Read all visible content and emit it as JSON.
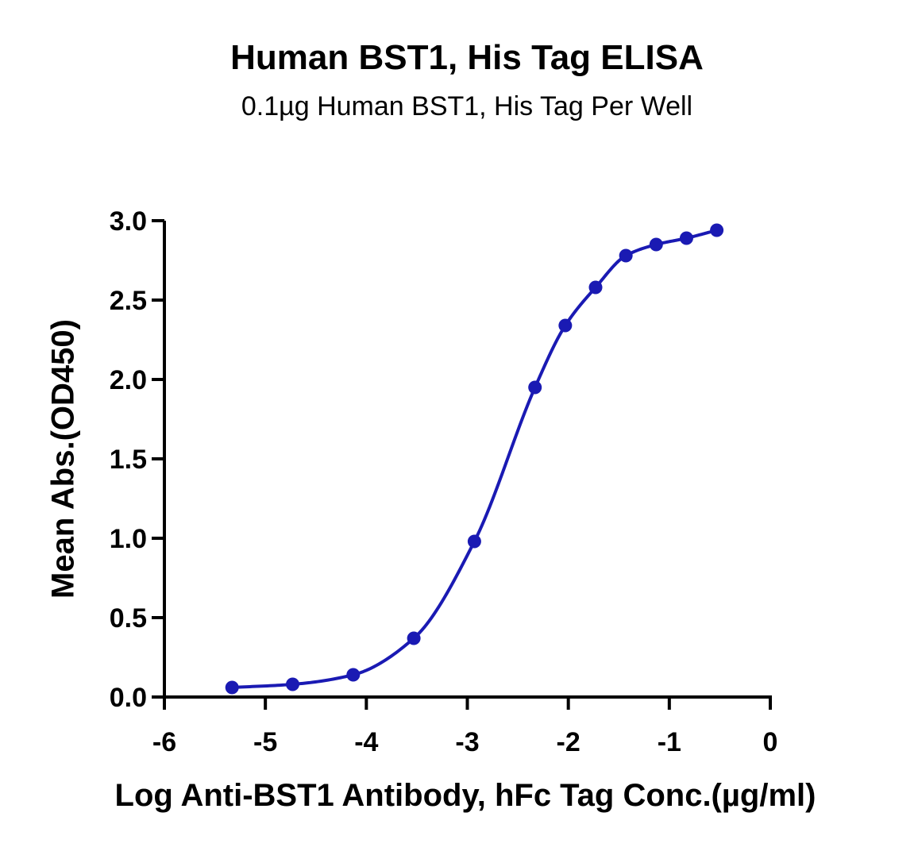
{
  "chart_data": {
    "type": "line",
    "title": "Human BST1, His Tag ELISA",
    "subtitle": "0.1µg Human BST1, His Tag Per Well",
    "xlabel": "Log Anti-BST1 Antibody, hFc Tag Conc.(µg/ml)",
    "ylabel": "Mean Abs.(OD450)",
    "xlim": [
      -6,
      0
    ],
    "ylim": [
      0,
      3.0
    ],
    "x_ticks": [
      -6,
      -5,
      -4,
      -3,
      -2,
      -1,
      0
    ],
    "x_tick_labels": [
      "-6",
      "-5",
      "-4",
      "-3",
      "-2",
      "-1",
      "0"
    ],
    "y_ticks": [
      0,
      0.5,
      1.0,
      1.5,
      2.0,
      2.5,
      3.0
    ],
    "y_tick_labels": [
      "0.0",
      "0.5",
      "1.0",
      "1.5",
      "2.0",
      "2.5",
      "3.0"
    ],
    "grid": false,
    "color": "#1a1ab3",
    "series": [
      {
        "x": [
          -5.33,
          -4.73,
          -4.13,
          -3.53,
          -2.93,
          -2.33,
          -2.03,
          -1.73,
          -1.43,
          -1.13,
          -0.83,
          -0.53
        ],
        "y": [
          0.06,
          0.08,
          0.14,
          0.37,
          0.98,
          1.95,
          2.34,
          2.58,
          2.78,
          2.85,
          2.89,
          2.94
        ]
      }
    ]
  }
}
